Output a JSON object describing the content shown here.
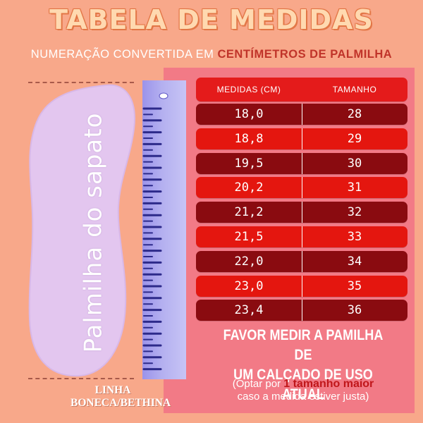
{
  "title": "TABELA DE MEDIDAS",
  "subtitle": {
    "prefix": "NUMERAÇÃO CONVERTIDA EM ",
    "highlight": "CENTÍMETROS DE PALMILHA"
  },
  "insole_label": "Palmilha do sapato",
  "brand": {
    "line1": "LINHA",
    "line2": "BONECA/BETHINA"
  },
  "colors": {
    "background": "#f8a88a",
    "panel": "#f27a86",
    "row_dark": "#8a0b10",
    "row_light": "#e4160f",
    "insole": "#e3c6ef",
    "ruler": "#9b93ea"
  },
  "table": {
    "headers": [
      "MEDIDAS (CM)",
      "TAMANHO"
    ],
    "rows": [
      {
        "cm": "18,0",
        "size": "28"
      },
      {
        "cm": "18,8",
        "size": "29"
      },
      {
        "cm": "19,5",
        "size": "30"
      },
      {
        "cm": "20,2",
        "size": "31"
      },
      {
        "cm": "21,2",
        "size": "32"
      },
      {
        "cm": "21,5",
        "size": "33"
      },
      {
        "cm": "22,0",
        "size": "34"
      },
      {
        "cm": "23,0",
        "size": "35"
      },
      {
        "cm": "23,4",
        "size": "36"
      }
    ]
  },
  "note": {
    "line1": "FAVOR MEDIR A PAMILHA DE",
    "line2": "UM CALÇADO DE USO ATUAL"
  },
  "tip": {
    "prefix": "(Optar por ",
    "highlight": "1 tamanho maior",
    "line2": "caso a medida estiver justa)"
  }
}
